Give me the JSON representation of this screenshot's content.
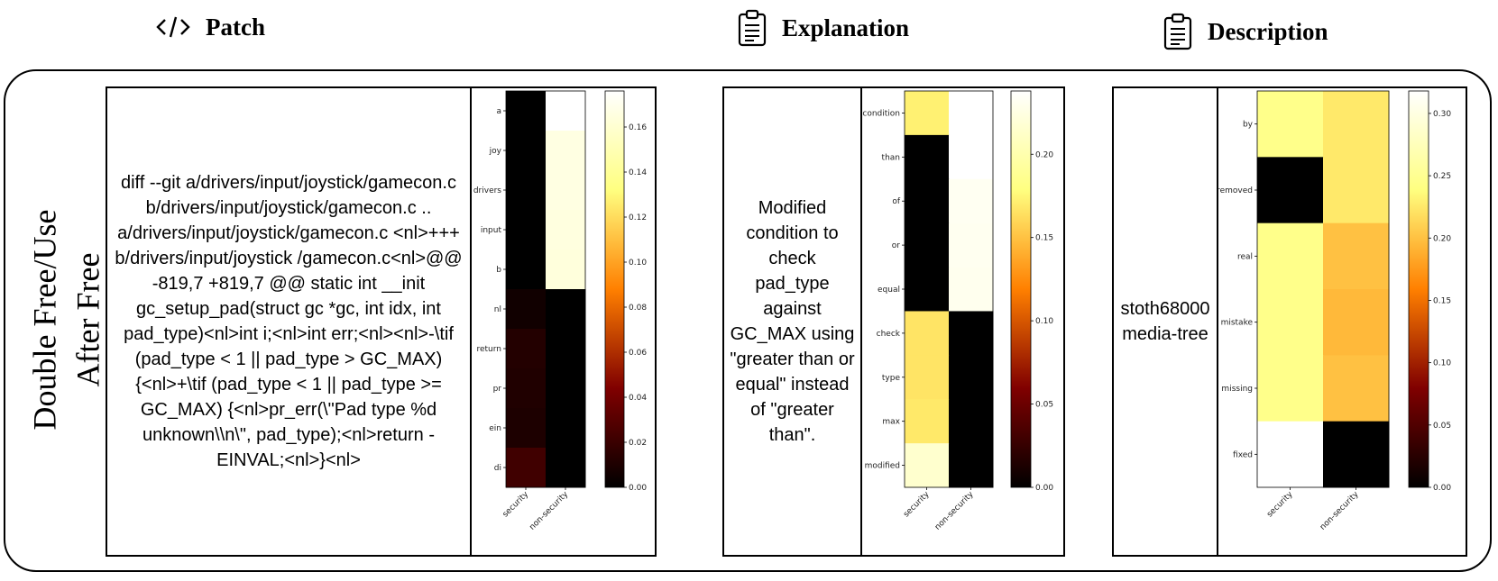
{
  "headers": {
    "patch": {
      "title": "Patch",
      "icon": "code-icon"
    },
    "explanation": {
      "title": "Explanation",
      "icon": "clipboard-icon"
    },
    "description": {
      "title": "Description",
      "icon": "clipboard-icon"
    }
  },
  "category_label_lines": [
    "Double Free/Use",
    "After Free"
  ],
  "patch_text": "diff --git a/drivers/input/joystick/gamecon.c b/drivers/input/joystick/gamecon.c .. a/drivers/input/joystick/gamecon.c <nl>+++ b/drivers/input/joystick /gamecon.c<nl>@@ -819,7 +819,7 @@ static int __init gc_setup_pad(struct gc *gc, int idx, int pad_type)<nl>int i;<nl>int err;<nl><nl>-\\tif (pad_type < 1 || pad_type > GC_MAX) {<nl>+\\tif (pad_type < 1 || pad_type >= GC_MAX) {<nl>pr_err(\\\"Pad type %d unknown\\\\n\\\", pad_type);<nl>return -EINVAL;<nl>}<nl>",
  "explanation_text": "Modified condition to check pad_type against GC_MAX using \"greater than or equal\" instead of \"greater than\".",
  "description_text": "stoth68000 media-tree",
  "chart_data": [
    {
      "type": "heatmap",
      "panel": "patch",
      "rows": [
        "a",
        "joy",
        "drivers",
        "input",
        "b",
        "nl",
        "return",
        "pr",
        "ein",
        "di"
      ],
      "columns": [
        "security",
        "non-security"
      ],
      "values": [
        [
          0.0,
          0.176
        ],
        [
          0.0,
          0.166
        ],
        [
          0.0,
          0.166
        ],
        [
          0.0,
          0.165
        ],
        [
          0.0,
          0.164
        ],
        [
          0.006,
          0.0
        ],
        [
          0.012,
          0.0
        ],
        [
          0.011,
          0.0
        ],
        [
          0.01,
          0.0
        ],
        [
          0.022,
          0.0
        ]
      ],
      "colorbar": {
        "min": 0,
        "max": 0.176,
        "ticks": [
          0.0,
          0.02,
          0.04,
          0.06,
          0.08,
          0.1,
          0.12,
          0.14,
          0.16
        ],
        "tick_labels": [
          "0.00",
          "0.02",
          "0.04",
          "0.06",
          "0.08",
          "0.10",
          "0.12",
          "0.14",
          "0.16"
        ]
      },
      "colormap": "afmhot"
    },
    {
      "type": "heatmap",
      "panel": "explanation",
      "rows": [
        "condition",
        "than",
        "of",
        "or",
        "equal",
        "check",
        "type",
        "max",
        "modified"
      ],
      "columns": [
        "security",
        "non-security"
      ],
      "values": [
        [
          0.172,
          0.238
        ],
        [
          0.0,
          0.238
        ],
        [
          0.0,
          0.232
        ],
        [
          0.0,
          0.231
        ],
        [
          0.0,
          0.23
        ],
        [
          0.166,
          0.0
        ],
        [
          0.166,
          0.0
        ],
        [
          0.168,
          0.0
        ],
        [
          0.215,
          0.0
        ]
      ],
      "colorbar": {
        "min": 0,
        "max": 0.238,
        "ticks": [
          0.0,
          0.05,
          0.1,
          0.15,
          0.2
        ],
        "tick_labels": [
          "0.00",
          "0.05",
          "0.10",
          "0.15",
          "0.20"
        ]
      },
      "colormap": "afmhot"
    },
    {
      "type": "heatmap",
      "panel": "description",
      "rows": [
        "by",
        "removed",
        "real",
        "mistake",
        "missing",
        "fixed"
      ],
      "columns": [
        "security",
        "non-security"
      ],
      "values": [
        [
          0.245,
          0.225
        ],
        [
          0.0,
          0.225
        ],
        [
          0.245,
          0.2
        ],
        [
          0.245,
          0.195
        ],
        [
          0.245,
          0.2
        ],
        [
          0.318,
          0.0
        ]
      ],
      "colorbar": {
        "min": 0,
        "max": 0.318,
        "ticks": [
          0.0,
          0.05,
          0.1,
          0.15,
          0.2,
          0.25,
          0.3
        ],
        "tick_labels": [
          "0.00",
          "0.05",
          "0.10",
          "0.15",
          "0.20",
          "0.25",
          "0.30"
        ]
      },
      "colormap": "afmhot"
    }
  ]
}
